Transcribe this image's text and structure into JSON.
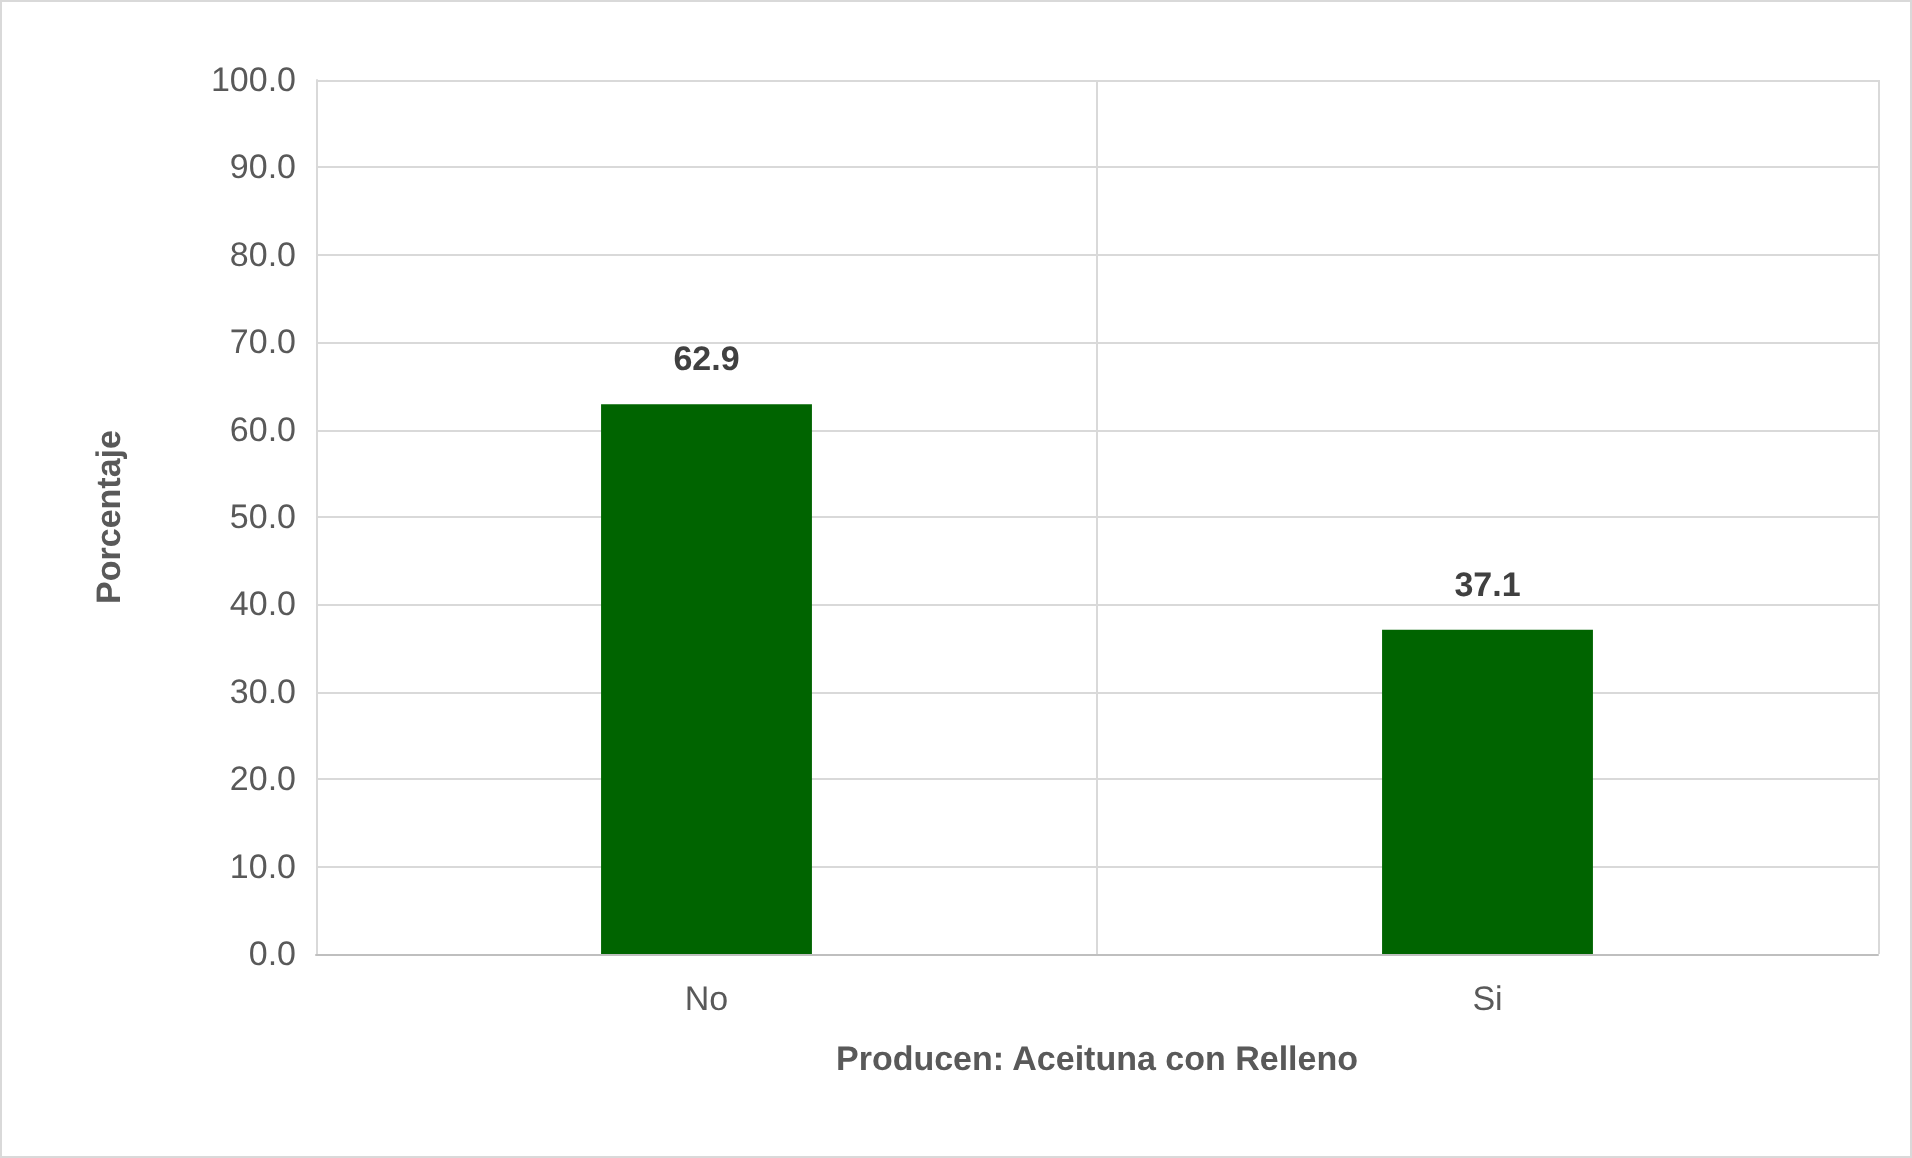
{
  "chart_data": {
    "type": "bar",
    "xlabel": "Producen: Aceituna con Relleno",
    "ylabel": "Porcentaje",
    "categories": [
      "No",
      "Si"
    ],
    "values": [
      62.9,
      37.1
    ],
    "color": "#006400",
    "ylim": [
      0,
      100
    ],
    "yticks": [
      {
        "value": 0,
        "label": "0.0"
      },
      {
        "value": 10,
        "label": "10.0"
      },
      {
        "value": 20,
        "label": "20.0"
      },
      {
        "value": 30,
        "label": "30.0"
      },
      {
        "value": 40,
        "label": "40.0"
      },
      {
        "value": 50,
        "label": "50.0"
      },
      {
        "value": 60,
        "label": "60.0"
      },
      {
        "value": 70,
        "label": "70.0"
      },
      {
        "value": 80,
        "label": "80.0"
      },
      {
        "value": 90,
        "label": "90.0"
      },
      {
        "value": 100,
        "label": "100.0"
      }
    ],
    "grid": true,
    "data_labels": true
  }
}
